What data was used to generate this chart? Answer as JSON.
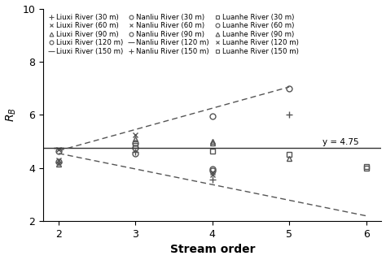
{
  "title": "",
  "xlabel": "Stream order",
  "ylabel": "R_B",
  "xlim": [
    1.8,
    6.2
  ],
  "ylim": [
    2,
    10
  ],
  "yticks": [
    2,
    4,
    6,
    8,
    10
  ],
  "xticks": [
    2,
    3,
    4,
    5,
    6
  ],
  "hline_y": 4.75,
  "hline_label": "y = 4.75",
  "dashed_line1": [
    [
      2,
      4.65
    ],
    [
      5,
      7.05
    ]
  ],
  "dashed_line2": [
    [
      2,
      4.55
    ],
    [
      6,
      2.2
    ]
  ],
  "series": [
    {
      "label": "Liuxi River (30 m)",
      "marker": "+",
      "filled": false,
      "x": [
        2
      ],
      "y": [
        4.2
      ]
    },
    {
      "label": "Liuxi River (120 m)",
      "marker": "o",
      "filled": false,
      "x": [
        2,
        3
      ],
      "y": [
        4.25,
        4.55
      ]
    },
    {
      "label": "Nanliu River (60 m)",
      "marker": "x",
      "filled": true,
      "x": [
        2,
        3,
        4
      ],
      "y": [
        4.7,
        5.25,
        3.85
      ]
    },
    {
      "label": "Nanliu River (150 m)",
      "marker": "+",
      "filled": false,
      "x": [
        3,
        4,
        5
      ],
      "y": [
        4.6,
        3.55,
        6.0
      ]
    },
    {
      "label": "Luanhe River (90 m)",
      "marker": "^",
      "filled": false,
      "x": [
        4
      ],
      "y": [
        4.95
      ]
    },
    {
      "label": "Liuxi River (60 m)",
      "marker": "x",
      "filled": true,
      "x": [
        2
      ],
      "y": [
        4.3
      ]
    },
    {
      "label": "Liuxi River (150 m)",
      "marker": "_",
      "filled": false,
      "x": [
        2
      ],
      "y": [
        4.75
      ]
    },
    {
      "label": "Nanliu River (90 m)",
      "marker": "o",
      "filled": false,
      "x": [
        3,
        4
      ],
      "y": [
        4.75,
        3.95
      ]
    },
    {
      "label": "Luanhe River (30 m)",
      "marker": "s",
      "filled": false,
      "x": [
        3,
        4,
        5,
        6
      ],
      "y": [
        4.85,
        4.65,
        4.5,
        4.0
      ]
    },
    {
      "label": "Luanhe River (120 m)",
      "marker": "x",
      "filled": true,
      "x": [
        4
      ],
      "y": [
        3.75
      ]
    },
    {
      "label": "Liuxi River (90 m)",
      "marker": "^",
      "filled": false,
      "x": [
        2,
        3,
        4,
        5
      ],
      "y": [
        4.15,
        5.1,
        5.0,
        4.35
      ]
    },
    {
      "label": "Nanliu River (30 m)",
      "marker": "o",
      "filled": false,
      "x": [
        2,
        3,
        4
      ],
      "y": [
        4.65,
        4.95,
        3.9
      ]
    },
    {
      "label": "Nanliu River (120 m)",
      "marker": "_",
      "filled": true,
      "x": [
        2
      ],
      "y": [
        4.75
      ]
    },
    {
      "label": "Luanhe River (60 m)",
      "marker": "o",
      "filled": false,
      "x": [
        4,
        5
      ],
      "y": [
        5.95,
        7.0
      ]
    },
    {
      "label": "Luanhe River (150 m)",
      "marker": "s",
      "filled": false,
      "x": [
        6
      ],
      "y": [
        4.05
      ]
    }
  ],
  "legend_entries": [
    {
      "marker": "+",
      "filled": false,
      "label": "Liuxi River (30 m)"
    },
    {
      "marker": "x",
      "filled": true,
      "label": "Liuxi River (60 m)"
    },
    {
      "marker": "^",
      "filled": false,
      "label": "Liuxi River (90 m)"
    },
    {
      "marker": "o",
      "filled": false,
      "label": "Liuxi River (120 m)"
    },
    {
      "marker": "_",
      "filled": false,
      "label": "Liuxi River (150 m)"
    },
    {
      "marker": "x",
      "filled": true,
      "label": "Nanliu River (60 m)"
    },
    {
      "marker": "o",
      "filled": false,
      "label": "Nanliu River (90 m)"
    },
    {
      "marker": "_",
      "filled": true,
      "label": "Nanliu River (120 m)"
    },
    {
      "marker": "+",
      "filled": false,
      "label": "Nanliu River (150 m)"
    },
    {
      "marker": "s",
      "filled": false,
      "label": "Luanhe River (30 m)"
    },
    {
      "marker": "^",
      "filled": false,
      "label": "Luanhe River (90 m)"
    },
    {
      "marker": "x",
      "filled": true,
      "label": "Luanhe River (120 m)"
    },
    {
      "marker": "o",
      "filled": false,
      "label": "Nanliu River (30 m)"
    },
    {
      "marker": "o",
      "filled": false,
      "label": "Luanhe River (60 m)"
    },
    {
      "marker": "s",
      "filled": false,
      "label": "Luanhe River (150 m)"
    }
  ],
  "marker_color": "#555555",
  "legend_fontsize": 6.2,
  "axis_fontsize": 10
}
